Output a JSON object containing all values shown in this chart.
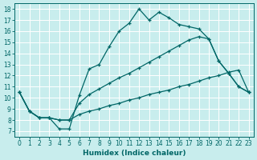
{
  "xlabel": "Humidex (Indice chaleur)",
  "background_color": "#c8eded",
  "grid_color": "#ffffff",
  "line_color": "#006666",
  "xlim": [
    -0.5,
    23.5
  ],
  "ylim": [
    6.5,
    18.5
  ],
  "xticks": [
    0,
    1,
    2,
    3,
    4,
    5,
    6,
    7,
    8,
    9,
    10,
    11,
    12,
    13,
    14,
    15,
    16,
    17,
    18,
    19,
    20,
    21,
    22,
    23
  ],
  "yticks": [
    7,
    8,
    9,
    10,
    11,
    12,
    13,
    14,
    15,
    16,
    17,
    18
  ],
  "line1_x": [
    0,
    1,
    2,
    3,
    4,
    5,
    6,
    7,
    8,
    9,
    10,
    11,
    12,
    13,
    14,
    15,
    16,
    17,
    18,
    19,
    20,
    21,
    22,
    23
  ],
  "line1_y": [
    10.5,
    8.8,
    8.2,
    8.2,
    7.2,
    7.2,
    10.2,
    12.6,
    13.0,
    14.6,
    16.0,
    16.7,
    18.0,
    17.0,
    17.7,
    17.2,
    16.6,
    16.4,
    16.2,
    15.3,
    13.3,
    12.2,
    11.0,
    10.5
  ],
  "line2_x": [
    0,
    1,
    2,
    3,
    4,
    5,
    6,
    7,
    8,
    9,
    10,
    11,
    12,
    13,
    14,
    15,
    16,
    17,
    18,
    19,
    20,
    21,
    22,
    23
  ],
  "line2_y": [
    10.5,
    8.8,
    8.2,
    8.2,
    8.0,
    8.0,
    9.5,
    10.3,
    10.8,
    11.3,
    11.8,
    12.2,
    12.7,
    13.2,
    13.7,
    14.2,
    14.7,
    15.2,
    15.5,
    15.3,
    13.3,
    12.2,
    11.0,
    10.5
  ],
  "line3_x": [
    0,
    1,
    2,
    3,
    4,
    5,
    6,
    7,
    8,
    9,
    10,
    11,
    12,
    13,
    14,
    15,
    16,
    17,
    18,
    19,
    20,
    21,
    22,
    23
  ],
  "line3_y": [
    10.5,
    8.8,
    8.2,
    8.2,
    8.0,
    8.0,
    8.5,
    8.8,
    9.0,
    9.3,
    9.5,
    9.8,
    10.0,
    10.3,
    10.5,
    10.7,
    11.0,
    11.2,
    11.5,
    11.8,
    12.0,
    12.3,
    12.5,
    10.5
  ]
}
